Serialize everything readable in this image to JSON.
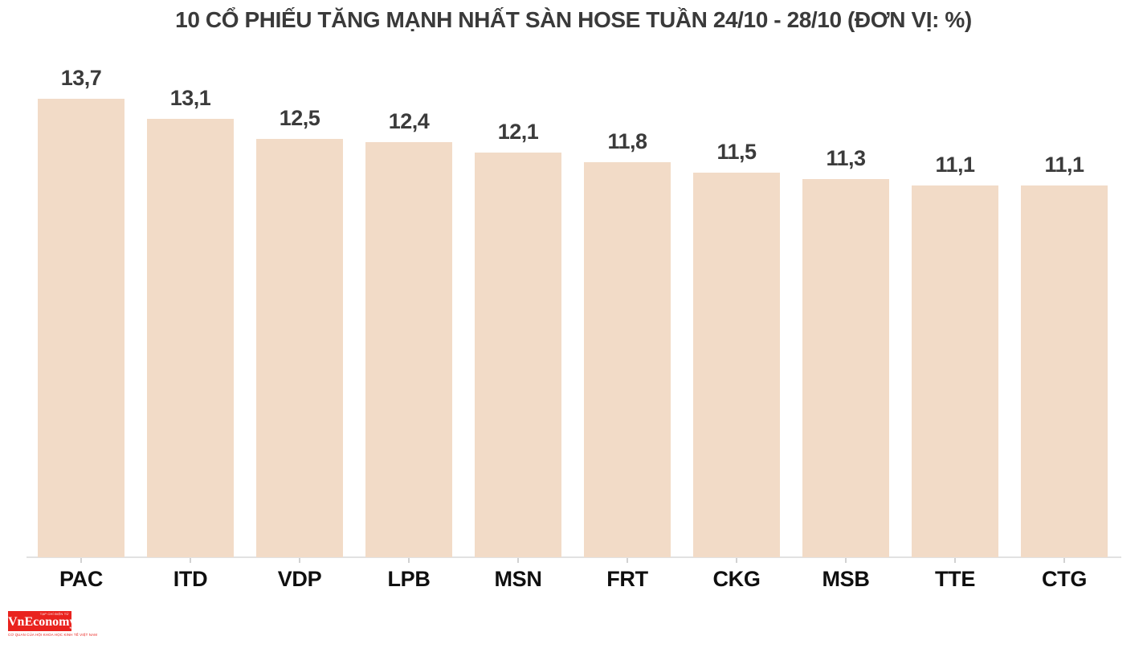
{
  "title": "10 CỔ PHIẾU TĂNG MẠNH NHẤT SÀN HOSE TUẦN 24/10 - 28/10 (ĐƠN VỊ: %)",
  "chart_data": {
    "type": "bar",
    "title": "10 CỔ PHIẾU TĂNG MẠNH NHẤT SÀN HOSE TUẦN 24/10 - 28/10",
    "unit": "%",
    "categories": [
      "PAC",
      "ITD",
      "VDP",
      "LPB",
      "MSN",
      "FRT",
      "CKG",
      "MSB",
      "TTE",
      "CTG"
    ],
    "values": [
      13.7,
      13.1,
      12.5,
      12.4,
      12.1,
      11.8,
      11.5,
      11.3,
      11.1,
      11.1
    ],
    "value_labels": [
      "13,7",
      "13,1",
      "12,5",
      "12,4",
      "12,1",
      "11,8",
      "11,5",
      "11,3",
      "11,1",
      "11,1"
    ],
    "xlabel": "",
    "ylabel": "",
    "ylim": [
      0,
      13.7
    ],
    "grid": false,
    "legend": false,
    "bar_color": "#f2dbc7",
    "value_label_color": "#3b3b3b",
    "category_label_color": "#0f0f0f",
    "axis_color": "#e2e2e2"
  },
  "logo": {
    "top_label": "TẠP CHÍ ĐIỆN TỬ",
    "name": "VnEconomy",
    "tagline": "CƠ QUAN CỦA HỘI KHOA HỌC KINH TẾ VIỆT NAM",
    "bg_color": "#e9231e",
    "text_color": "#ffffff"
  }
}
